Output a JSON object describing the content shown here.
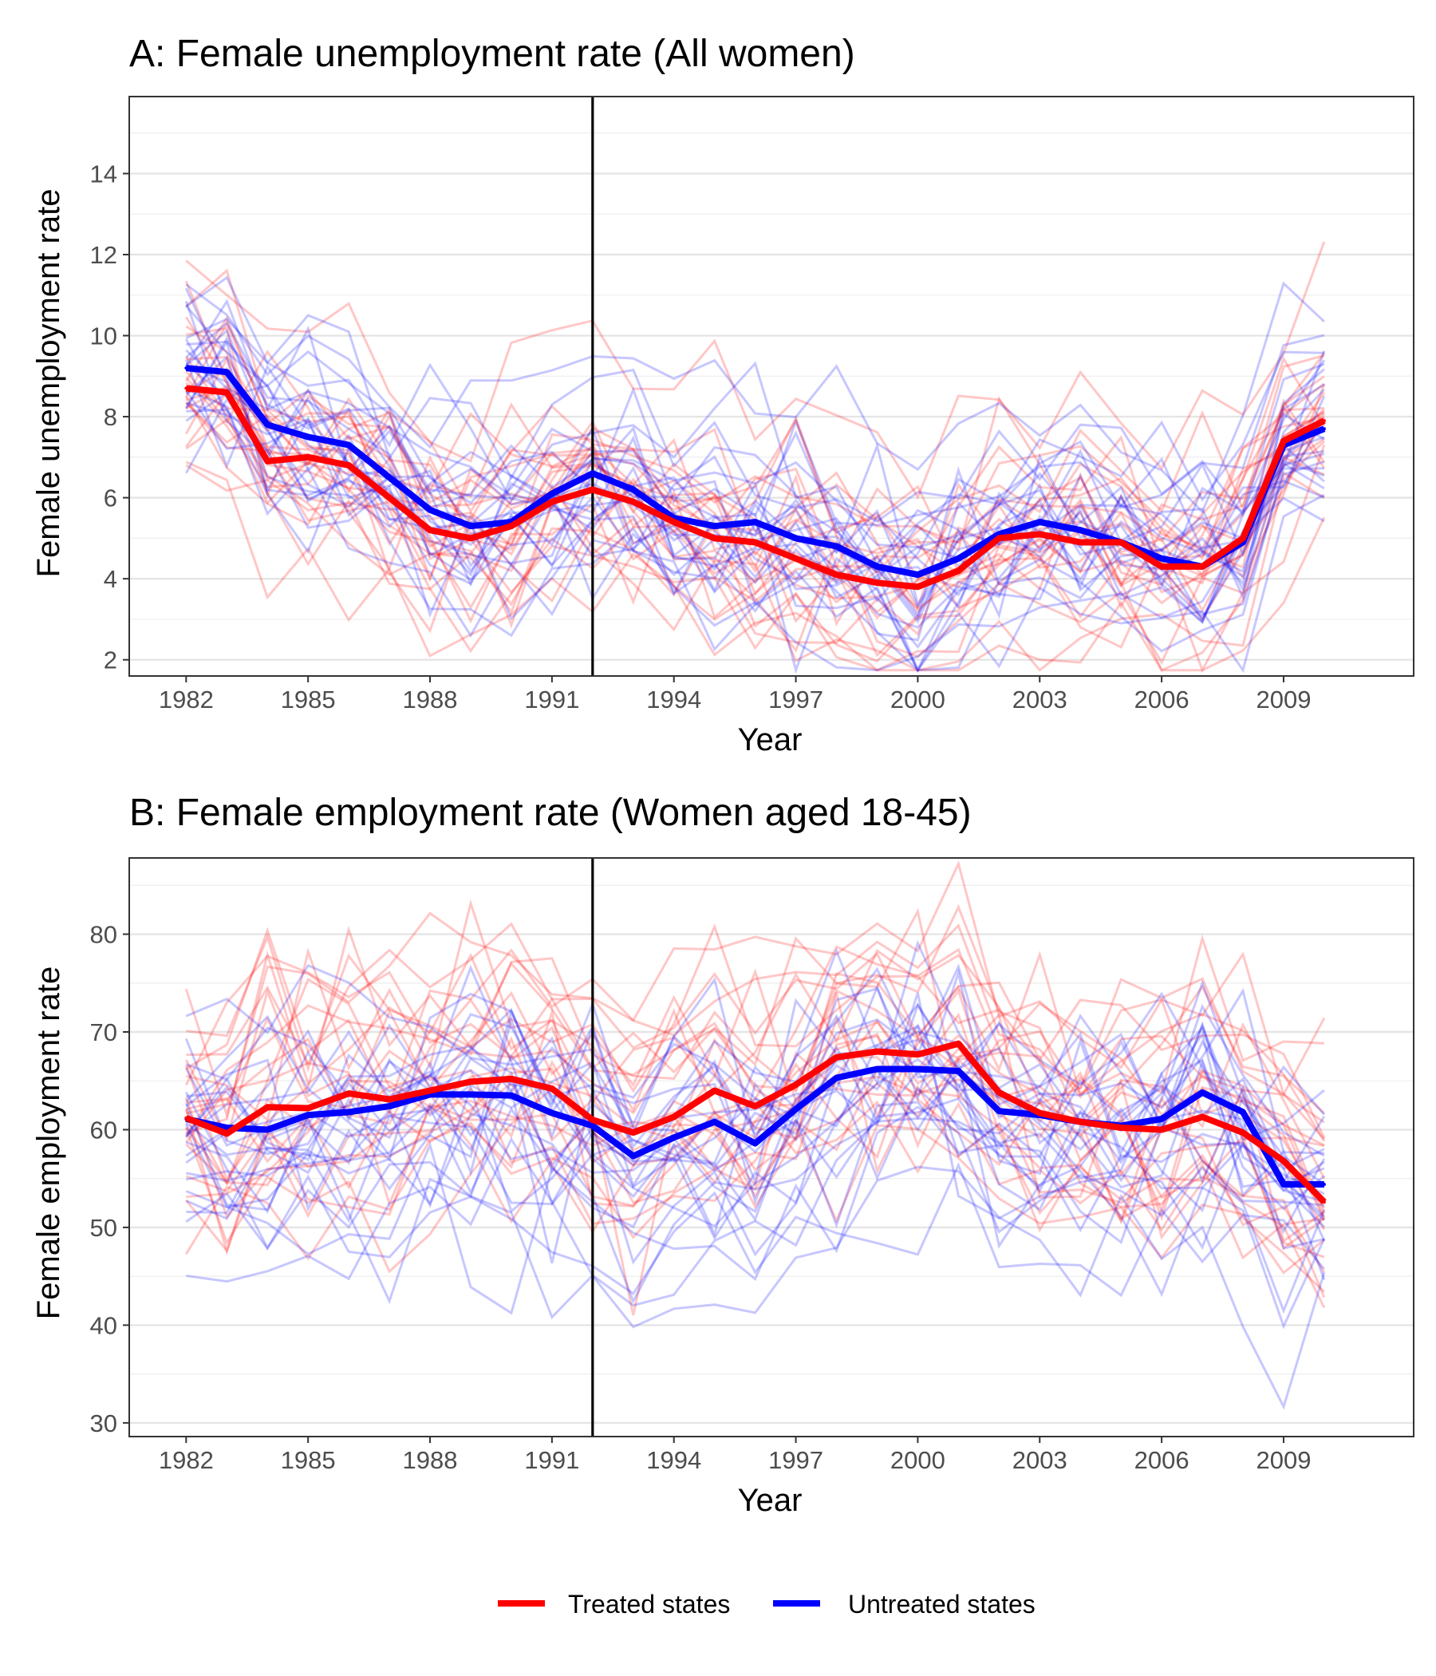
{
  "chart_data": [
    {
      "type": "line",
      "title": "A: Female unemployment rate (All women)",
      "xlabel": "Year",
      "ylabel": "Female unemployment rate",
      "xlim": [
        1980.6,
        2012.2
      ],
      "ylim": [
        1.6,
        15.9
      ],
      "x_ticks": [
        1982,
        1985,
        1988,
        1991,
        1994,
        1997,
        2000,
        2003,
        2006,
        2009
      ],
      "y_ticks": [
        2,
        4,
        6,
        8,
        10,
        12,
        14
      ],
      "vertical_line_x": 1992,
      "grid": true,
      "x": [
        1982,
        1983,
        1984,
        1985,
        1986,
        1987,
        1988,
        1989,
        1990,
        1991,
        1992,
        1993,
        1994,
        1995,
        1996,
        1997,
        1998,
        1999,
        2000,
        2001,
        2002,
        2003,
        2004,
        2005,
        2006,
        2007,
        2008,
        2009,
        2010
      ],
      "series": [
        {
          "name": "Treated states",
          "color": "#ff0000",
          "values": [
            8.7,
            8.6,
            6.9,
            7.0,
            6.8,
            6.0,
            5.2,
            5.0,
            5.3,
            5.9,
            6.2,
            5.9,
            5.4,
            5.0,
            4.9,
            4.5,
            4.1,
            3.9,
            3.8,
            4.2,
            5.0,
            5.1,
            4.9,
            4.9,
            4.3,
            4.3,
            5.0,
            7.4,
            7.9
          ]
        },
        {
          "name": "Untreated states",
          "color": "#0000ff",
          "values": [
            9.2,
            9.1,
            7.8,
            7.5,
            7.3,
            6.5,
            5.7,
            5.3,
            5.4,
            6.1,
            6.6,
            6.2,
            5.5,
            5.3,
            5.4,
            5.0,
            4.8,
            4.3,
            4.1,
            4.5,
            5.1,
            5.4,
            5.2,
            4.9,
            4.5,
            4.3,
            4.9,
            7.3,
            7.7
          ]
        }
      ]
    },
    {
      "type": "line",
      "title": "B: Female employment rate (Women aged 18-45)",
      "xlabel": "Year",
      "ylabel": "Female employment rate",
      "xlim": [
        1980.6,
        2012.2
      ],
      "ylim": [
        28.6,
        87.8
      ],
      "x_ticks": [
        1982,
        1985,
        1988,
        1991,
        1994,
        1997,
        2000,
        2003,
        2006,
        2009
      ],
      "y_ticks": [
        30,
        40,
        50,
        60,
        70,
        80
      ],
      "vertical_line_x": 1992,
      "grid": true,
      "x": [
        1982,
        1983,
        1984,
        1985,
        1986,
        1987,
        1988,
        1989,
        1990,
        1991,
        1992,
        1993,
        1994,
        1995,
        1996,
        1997,
        1998,
        1999,
        2000,
        2001,
        2002,
        2003,
        2004,
        2005,
        2006,
        2007,
        2008,
        2009,
        2010
      ],
      "series": [
        {
          "name": "Treated states",
          "color": "#ff0000",
          "values": [
            61.2,
            59.6,
            62.3,
            62.2,
            63.7,
            63.1,
            64.0,
            64.9,
            65.2,
            64.2,
            61.0,
            59.7,
            61.3,
            64.0,
            62.4,
            64.6,
            67.4,
            68.0,
            67.7,
            68.8,
            63.8,
            61.7,
            60.8,
            60.2,
            60.0,
            61.3,
            59.7,
            56.8,
            52.6
          ]
        },
        {
          "name": "Untreated states",
          "color": "#0000ff",
          "values": [
            61.1,
            60.2,
            60.0,
            61.5,
            61.8,
            62.4,
            63.6,
            63.6,
            63.5,
            61.7,
            60.4,
            57.3,
            59.2,
            60.8,
            58.6,
            62.1,
            65.3,
            66.2,
            66.2,
            66.0,
            61.9,
            61.5,
            60.8,
            60.4,
            61.1,
            63.8,
            61.8,
            54.4,
            54.4
          ]
        }
      ]
    }
  ],
  "legend": {
    "position": "bottom",
    "items": [
      {
        "label": "Treated states",
        "color": "#ff0000"
      },
      {
        "label": "Untreated states",
        "color": "#0000ff"
      }
    ]
  }
}
